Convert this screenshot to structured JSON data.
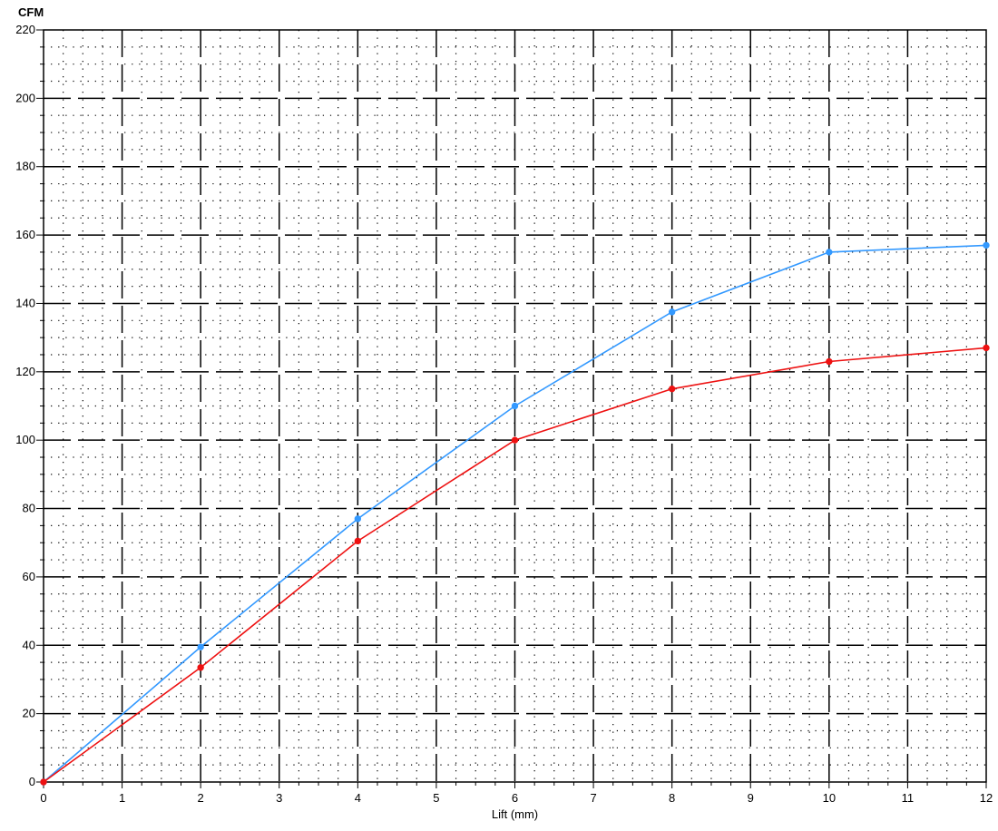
{
  "chart_data": {
    "type": "line",
    "title": "",
    "ylabel": "CFM",
    "xlabel": "Lift (mm)",
    "xlim": [
      0,
      12
    ],
    "ylim": [
      0,
      220
    ],
    "x_ticks": [
      0,
      1,
      2,
      3,
      4,
      5,
      6,
      7,
      8,
      9,
      10,
      11,
      12
    ],
    "y_ticks": [
      0,
      20,
      40,
      60,
      80,
      100,
      120,
      140,
      160,
      180,
      200,
      220
    ],
    "grid": true,
    "series": [
      {
        "color": "#3399ff",
        "x": [
          0,
          2,
          4,
          6,
          8,
          10,
          12
        ],
        "y": [
          0,
          39.5,
          77,
          110,
          137.5,
          155,
          157
        ]
      },
      {
        "color": "#ee1111",
        "x": [
          0,
          2,
          4,
          6,
          8,
          10,
          12
        ],
        "y": [
          0,
          33.5,
          70.5,
          100,
          115,
          123,
          127
        ]
      }
    ]
  }
}
